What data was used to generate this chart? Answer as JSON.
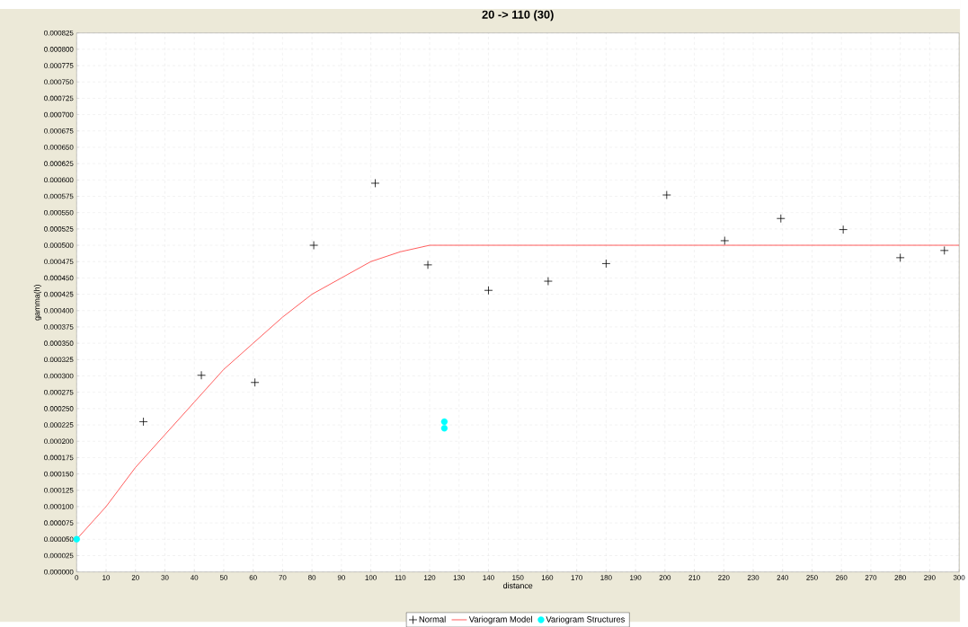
{
  "chart_data": {
    "type": "scatter",
    "title": "20 -> 110 (30)",
    "xlabel": "distance",
    "ylabel": "gamma(h)",
    "xlim": [
      0,
      300
    ],
    "ylim": [
      0,
      0.000825
    ],
    "xticks": [
      0,
      10,
      20,
      30,
      40,
      50,
      60,
      70,
      80,
      90,
      100,
      110,
      120,
      130,
      140,
      150,
      160,
      170,
      180,
      190,
      200,
      210,
      220,
      230,
      240,
      250,
      260,
      270,
      280,
      290,
      300
    ],
    "yticks": [
      {
        "value": 0,
        "label": "0.000000"
      },
      {
        "value": 2.5e-05,
        "label": "0.000025"
      },
      {
        "value": 5e-05,
        "label": "0.000050"
      },
      {
        "value": 7.5e-05,
        "label": "0.000075"
      },
      {
        "value": 0.0001,
        "label": "0.000100"
      },
      {
        "value": 0.000125,
        "label": "0.000125"
      },
      {
        "value": 0.00015,
        "label": "0.000150"
      },
      {
        "value": 0.000175,
        "label": "0.000175"
      },
      {
        "value": 0.0002,
        "label": "0.000200"
      },
      {
        "value": 0.000225,
        "label": "0.000225"
      },
      {
        "value": 0.00025,
        "label": "0.000250"
      },
      {
        "value": 0.000275,
        "label": "0.000275"
      },
      {
        "value": 0.0003,
        "label": "0.000300"
      },
      {
        "value": 0.000325,
        "label": "0.000325"
      },
      {
        "value": 0.00035,
        "label": "0.000350"
      },
      {
        "value": 0.000375,
        "label": "0.000375"
      },
      {
        "value": 0.0004,
        "label": "0.000400"
      },
      {
        "value": 0.000425,
        "label": "0.000425"
      },
      {
        "value": 0.00045,
        "label": "0.000450"
      },
      {
        "value": 0.000475,
        "label": "0.000475"
      },
      {
        "value": 0.0005,
        "label": "0.000500"
      },
      {
        "value": 0.000525,
        "label": "0.000525"
      },
      {
        "value": 0.00055,
        "label": "0.000550"
      },
      {
        "value": 0.000575,
        "label": "0.000575"
      },
      {
        "value": 0.0006,
        "label": "0.000600"
      },
      {
        "value": 0.000625,
        "label": "0.000625"
      },
      {
        "value": 0.00065,
        "label": "0.000650"
      },
      {
        "value": 0.000675,
        "label": "0.000675"
      },
      {
        "value": 0.0007,
        "label": "0.000700"
      },
      {
        "value": 0.000725,
        "label": "0.000725"
      },
      {
        "value": 0.00075,
        "label": "0.000750"
      },
      {
        "value": 0.000775,
        "label": "0.000775"
      },
      {
        "value": 0.0008,
        "label": "0.000800"
      },
      {
        "value": 0.000825,
        "label": "0.000825"
      }
    ],
    "grid": true,
    "legend": "bottom",
    "series": [
      {
        "name": "Normal",
        "marker": "cross",
        "color": "#000000",
        "x": [
          22.7,
          42.4,
          60.6,
          80.6,
          101.5,
          119.4,
          140,
          160.3,
          180,
          200.6,
          220.3,
          239.4,
          260.6,
          280,
          295
        ],
        "values": [
          0.00023,
          0.000301,
          0.00029,
          0.0005,
          0.000595,
          0.00047,
          0.000431,
          0.000445,
          0.000472,
          0.000577,
          0.000507,
          0.000541,
          0.000524,
          0.000481,
          0.000492
        ]
      },
      {
        "name": "Variogram Model",
        "type": "line",
        "marker": "none",
        "color": "#ff3333",
        "x": [
          0,
          6,
          10,
          20,
          30,
          40,
          50,
          60,
          70,
          80,
          90,
          100,
          110,
          120,
          300
        ],
        "values": [
          5e-05,
          8e-05,
          0.0001,
          0.00016,
          0.00021,
          0.00026,
          0.00031,
          0.00035,
          0.00039,
          0.000425,
          0.00045,
          0.000475,
          0.00049,
          0.0005,
          0.0005
        ]
      },
      {
        "name": "Variogram Structures",
        "marker": "circle",
        "color": "#00ffff",
        "x": [
          0,
          125,
          125
        ],
        "values": [
          5e-05,
          0.00023,
          0.00022
        ]
      }
    ]
  }
}
